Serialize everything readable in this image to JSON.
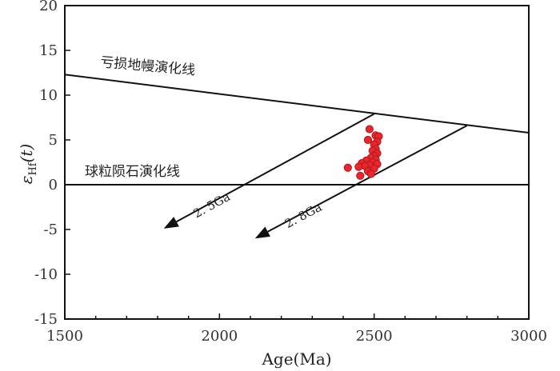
{
  "chart_data": {
    "type": "scatter",
    "xlabel": "Age(Ma)",
    "ylabel_main": "ε",
    "ylabel_sub": "Hf",
    "ylabel_tail": "(t)",
    "xlim": [
      1500,
      3000
    ],
    "ylim": [
      -15,
      20
    ],
    "x_ticks": [
      1500,
      2000,
      2500,
      3000
    ],
    "x_tick_labels": [
      "1500",
      "2000",
      "2500",
      "3000"
    ],
    "y_ticks": [
      -15,
      -10,
      -5,
      0,
      5,
      10,
      15,
      20
    ],
    "y_tick_labels": [
      "-15",
      "-10",
      "-5",
      "0",
      "5",
      "10",
      "15",
      "20"
    ],
    "point_color": "#e8262b",
    "points": [
      {
        "x": 2485,
        "y": 6.2
      },
      {
        "x": 2505,
        "y": 5.5
      },
      {
        "x": 2515,
        "y": 5.4
      },
      {
        "x": 2480,
        "y": 5.0
      },
      {
        "x": 2510,
        "y": 4.8
      },
      {
        "x": 2500,
        "y": 4.5
      },
      {
        "x": 2505,
        "y": 4.0
      },
      {
        "x": 2495,
        "y": 3.8
      },
      {
        "x": 2510,
        "y": 3.5
      },
      {
        "x": 2500,
        "y": 3.2
      },
      {
        "x": 2490,
        "y": 3.0
      },
      {
        "x": 2505,
        "y": 2.8
      },
      {
        "x": 2475,
        "y": 2.7
      },
      {
        "x": 2495,
        "y": 2.5
      },
      {
        "x": 2460,
        "y": 2.4
      },
      {
        "x": 2510,
        "y": 2.3
      },
      {
        "x": 2485,
        "y": 2.2
      },
      {
        "x": 2470,
        "y": 2.1
      },
      {
        "x": 2450,
        "y": 2.0
      },
      {
        "x": 2415,
        "y": 1.9
      },
      {
        "x": 2500,
        "y": 1.8
      },
      {
        "x": 2480,
        "y": 1.5
      },
      {
        "x": 2490,
        "y": 1.2
      },
      {
        "x": 2455,
        "y": 1.0
      }
    ],
    "reference_lines": [
      {
        "id": "depleted-mantle",
        "x1": 1500,
        "y1": 12.3,
        "x2": 3000,
        "y2": 5.8
      },
      {
        "id": "chur",
        "x1": 1500,
        "y1": 0,
        "x2": 3000,
        "y2": 0
      }
    ],
    "evolution_arrows": [
      {
        "id": "arrow-2-5ga",
        "label": "2. 5Ga",
        "x1": 2500,
        "y1": 7.9,
        "x2": 1820,
        "y2": -4.9
      },
      {
        "id": "arrow-2-8ga",
        "label": "2. 8Ga",
        "x1": 2800,
        "y1": 6.6,
        "x2": 2115,
        "y2": -6.0
      }
    ],
    "annotations": {
      "depleted_mantle": "亏损地幔演化线",
      "chur": "球粒陨石演化线"
    }
  }
}
